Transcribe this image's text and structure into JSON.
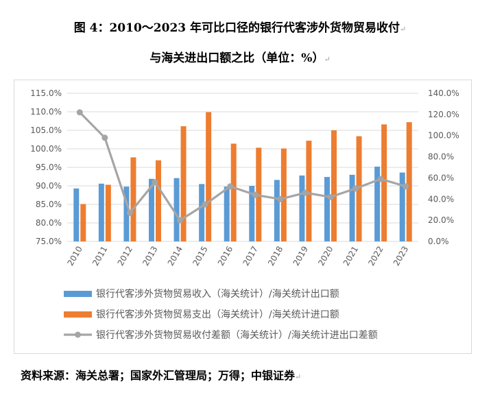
{
  "title": {
    "line1": "图 4：2010～2023 年可比口径的银行代客涉外货物贸易收付",
    "line2": "与海关进出口额之比（单位：%）"
  },
  "source": "资料来源：海关总署；国家外汇管理局；万得；中银证券",
  "colors": {
    "income": "#5b9bd5",
    "expense": "#ed7d31",
    "diff": "#a5a5a5",
    "grid": "#d9d9d9",
    "axis_text": "#595959"
  },
  "chart_data": {
    "type": "bar+line",
    "categories": [
      "2010",
      "2011",
      "2012",
      "2013",
      "2014",
      "2015",
      "2016",
      "2017",
      "2018",
      "2019",
      "2020",
      "2021",
      "2022",
      "2023"
    ],
    "y_left": {
      "min": 75,
      "max": 115,
      "step": 5,
      "tick_labels": [
        "75.0%",
        "80.0%",
        "85.0%",
        "90.0%",
        "95.0%",
        "100.0%",
        "105.0%",
        "110.0%",
        "115.0%"
      ]
    },
    "y_right": {
      "min": 0,
      "max": 140,
      "step": 20,
      "tick_labels": [
        "0.0%",
        "20.0%",
        "40.0%",
        "60.0%",
        "80.0%",
        "100.0%",
        "120.0%",
        "140.0%"
      ]
    },
    "series": [
      {
        "name": "银行代客涉外货物贸易收入（海关统计）/海关统计出口额",
        "type": "bar",
        "axis": "left",
        "values": [
          89.3,
          90.6,
          89.8,
          91.9,
          92.1,
          90.5,
          89.8,
          90.0,
          91.6,
          92.8,
          92.4,
          93.0,
          95.2,
          93.6
        ]
      },
      {
        "name": "银行代客涉外货物贸易支出（海关统计）/海关统计进口额",
        "type": "bar",
        "axis": "left",
        "values": [
          85.1,
          90.3,
          97.7,
          96.9,
          106.1,
          109.9,
          101.4,
          100.3,
          100.1,
          102.2,
          105.0,
          103.4,
          106.6,
          107.2
        ]
      },
      {
        "name": "银行代客涉外货物贸易收付差额（海关统计）/海关统计进出口差额",
        "type": "line",
        "axis": "right",
        "values": [
          122,
          98,
          27,
          56,
          20,
          35,
          52,
          44,
          40,
          46,
          42,
          50,
          59,
          52
        ]
      }
    ]
  }
}
